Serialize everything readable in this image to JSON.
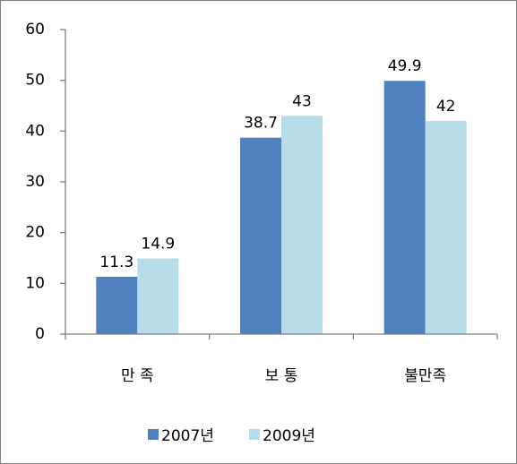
{
  "chart_data": {
    "type": "bar",
    "categories": [
      "만 족",
      "보 통",
      "불만족"
    ],
    "series": [
      {
        "name": "2007년",
        "color": "#4f81bd",
        "values": [
          11.3,
          38.7,
          49.9
        ]
      },
      {
        "name": "2009년",
        "color": "#b7dde8",
        "values": [
          14.9,
          43,
          42
        ]
      }
    ],
    "ylim": [
      0,
      60
    ],
    "yticks": [
      0,
      10,
      20,
      30,
      40,
      50,
      60
    ],
    "grid": false,
    "legend": "bottom"
  }
}
